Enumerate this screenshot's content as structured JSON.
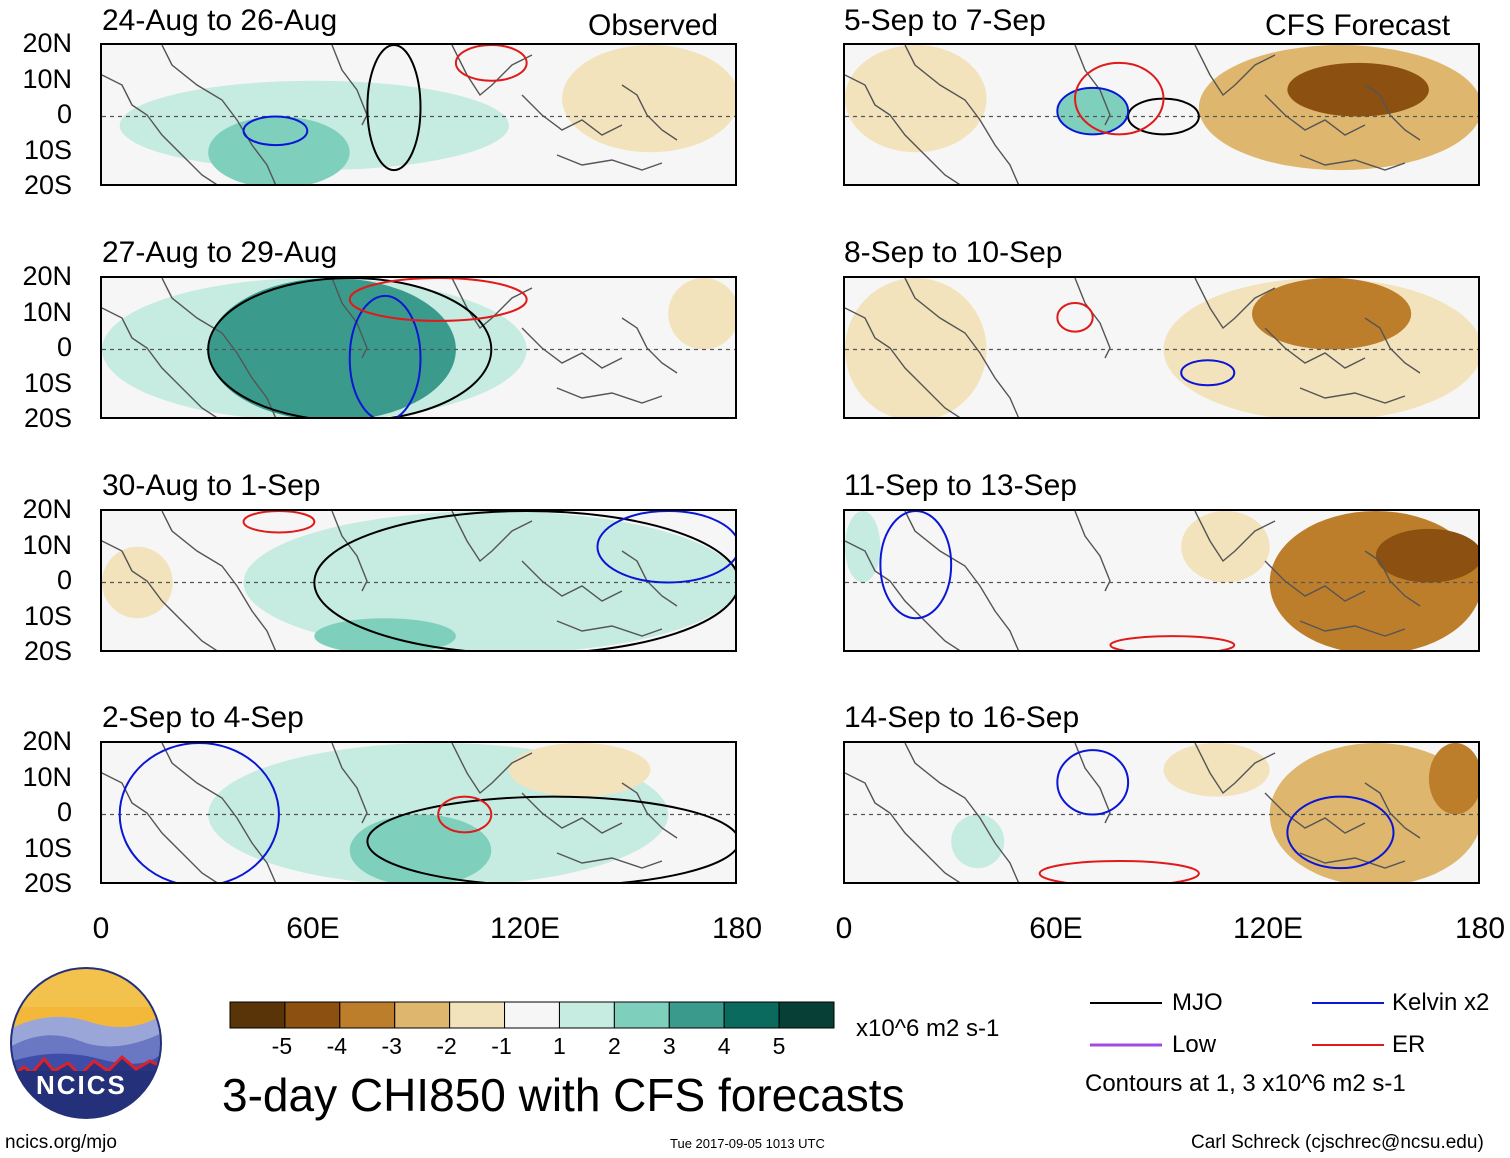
{
  "chart_data": {
    "type": "heatmap",
    "title": "3-day CHI850 with CFS forecasts",
    "units": "x10^6 m2 s-1",
    "column_labels": [
      "Observed",
      "CFS Forecast"
    ],
    "lat_ticks": [
      "20N",
      "10N",
      "0",
      "10S",
      "20S"
    ],
    "lon_ticks": [
      "0",
      "60E",
      "120E",
      "180"
    ],
    "panels": [
      {
        "title": "24-Aug to 26-Aug",
        "column": "Observed",
        "regions": [
          {
            "type": "pos",
            "level": 3,
            "lon": [
              30,
              70
            ],
            "lat": [
              -20,
              0
            ]
          },
          {
            "type": "pos",
            "level": 2,
            "lon": [
              5,
              115
            ],
            "lat": [
              -15,
              10
            ]
          },
          {
            "type": "neg",
            "level": -2,
            "lon": [
              130,
              180
            ],
            "lat": [
              -10,
              20
            ]
          }
        ],
        "contours": [
          {
            "kind": "MJO",
            "lon": [
              75,
              90
            ],
            "lat": [
              -15,
              20
            ]
          },
          {
            "kind": "Kelvin",
            "lon": [
              40,
              58
            ],
            "lat": [
              -8,
              0
            ]
          },
          {
            "kind": "ER",
            "lon": [
              100,
              120
            ],
            "lat": [
              10,
              20
            ]
          }
        ]
      },
      {
        "title": "27-Aug to 29-Aug",
        "column": "Observed",
        "regions": [
          {
            "type": "pos",
            "level": 4,
            "lon": [
              30,
              100
            ],
            "lat": [
              -20,
              20
            ]
          },
          {
            "type": "pos",
            "level": 2,
            "lon": [
              0,
              120
            ],
            "lat": [
              -20,
              20
            ]
          },
          {
            "type": "neg",
            "level": -1,
            "lon": [
              160,
              180
            ],
            "lat": [
              0,
              20
            ]
          }
        ],
        "contours": [
          {
            "kind": "MJO",
            "lon": [
              30,
              110
            ],
            "lat": [
              -20,
              20
            ]
          },
          {
            "kind": "Kelvin",
            "lon": [
              70,
              90
            ],
            "lat": [
              -20,
              15
            ]
          },
          {
            "kind": "ER",
            "lon": [
              70,
              120
            ],
            "lat": [
              8,
              20
            ]
          }
        ]
      },
      {
        "title": "30-Aug to 1-Sep",
        "column": "Observed",
        "regions": [
          {
            "type": "pos",
            "level": 2,
            "lon": [
              40,
              180
            ],
            "lat": [
              -20,
              20
            ]
          },
          {
            "type": "pos",
            "level": 3,
            "lon": [
              60,
              100
            ],
            "lat": [
              -20,
              -10
            ]
          },
          {
            "type": "neg",
            "level": -1,
            "lon": [
              0,
              20
            ],
            "lat": [
              -10,
              10
            ]
          }
        ],
        "contours": [
          {
            "kind": "MJO",
            "lon": [
              60,
              180
            ],
            "lat": [
              -20,
              20
            ]
          },
          {
            "kind": "Kelvin",
            "lon": [
              140,
              180
            ],
            "lat": [
              0,
              20
            ]
          },
          {
            "kind": "ER",
            "lon": [
              40,
              60
            ],
            "lat": [
              14,
              20
            ]
          }
        ]
      },
      {
        "title": "2-Sep to 4-Sep",
        "column": "Observed",
        "regions": [
          {
            "type": "pos",
            "level": 3,
            "lon": [
              70,
              110
            ],
            "lat": [
              -20,
              0
            ]
          },
          {
            "type": "pos",
            "level": 2,
            "lon": [
              30,
              160
            ],
            "lat": [
              -20,
              20
            ]
          },
          {
            "type": "neg",
            "level": -2,
            "lon": [
              115,
              155
            ],
            "lat": [
              5,
              20
            ]
          }
        ],
        "contours": [
          {
            "kind": "MJO",
            "lon": [
              75,
              180
            ],
            "lat": [
              -20,
              5
            ]
          },
          {
            "kind": "Kelvin",
            "lon": [
              5,
              50
            ],
            "lat": [
              -20,
              20
            ]
          },
          {
            "kind": "ER",
            "lon": [
              95,
              110
            ],
            "lat": [
              -5,
              5
            ]
          }
        ]
      },
      {
        "title": "5-Sep to 7-Sep",
        "column": "CFS Forecast",
        "regions": [
          {
            "type": "neg",
            "level": -5,
            "lon": [
              125,
              165
            ],
            "lat": [
              0,
              15
            ]
          },
          {
            "type": "neg",
            "level": -3,
            "lon": [
              100,
              180
            ],
            "lat": [
              -15,
              20
            ]
          },
          {
            "type": "neg",
            "level": -2,
            "lon": [
              0,
              40
            ],
            "lat": [
              -10,
              20
            ]
          },
          {
            "type": "pos",
            "level": 3,
            "lon": [
              60,
              80
            ],
            "lat": [
              -5,
              8
            ]
          }
        ],
        "contours": [
          {
            "kind": "MJO",
            "lon": [
              80,
              100
            ],
            "lat": [
              -5,
              5
            ]
          },
          {
            "kind": "Kelvin",
            "lon": [
              60,
              80
            ],
            "lat": [
              -5,
              8
            ]
          },
          {
            "kind": "ER",
            "lon": [
              65,
              90
            ],
            "lat": [
              -5,
              15
            ]
          }
        ]
      },
      {
        "title": "8-Sep to 10-Sep",
        "column": "CFS Forecast",
        "regions": [
          {
            "type": "neg",
            "level": -4,
            "lon": [
              115,
              160
            ],
            "lat": [
              0,
              20
            ]
          },
          {
            "type": "neg",
            "level": -2,
            "lon": [
              90,
              180
            ],
            "lat": [
              -20,
              20
            ]
          },
          {
            "type": "neg",
            "level": -1,
            "lon": [
              0,
              40
            ],
            "lat": [
              -20,
              20
            ]
          }
        ],
        "contours": [
          {
            "kind": "Kelvin",
            "lon": [
              95,
              110
            ],
            "lat": [
              -10,
              -3
            ]
          },
          {
            "kind": "ER",
            "lon": [
              60,
              70
            ],
            "lat": [
              5,
              13
            ]
          }
        ]
      },
      {
        "title": "11-Sep to 13-Sep",
        "column": "CFS Forecast",
        "regions": [
          {
            "type": "neg",
            "level": -5,
            "lon": [
              150,
              180
            ],
            "lat": [
              0,
              15
            ]
          },
          {
            "type": "neg",
            "level": -4,
            "lon": [
              120,
              180
            ],
            "lat": [
              -20,
              20
            ]
          },
          {
            "type": "neg",
            "level": -2,
            "lon": [
              95,
              120
            ],
            "lat": [
              0,
              20
            ]
          },
          {
            "type": "pos",
            "level": 2,
            "lon": [
              0,
              10
            ],
            "lat": [
              0,
              20
            ]
          }
        ],
        "contours": [
          {
            "kind": "Kelvin",
            "lon": [
              10,
              30
            ],
            "lat": [
              -10,
              20
            ]
          },
          {
            "kind": "ER",
            "lon": [
              75,
              110
            ],
            "lat": [
              -20,
              -15
            ]
          }
        ]
      },
      {
        "title": "14-Sep to 16-Sep",
        "column": "CFS Forecast",
        "regions": [
          {
            "type": "neg",
            "level": -4,
            "lon": [
              165,
              180
            ],
            "lat": [
              0,
              20
            ]
          },
          {
            "type": "neg",
            "level": -3,
            "lon": [
              120,
              180
            ],
            "lat": [
              -20,
              20
            ]
          },
          {
            "type": "neg",
            "level": -2,
            "lon": [
              90,
              120
            ],
            "lat": [
              5,
              20
            ]
          },
          {
            "type": "pos",
            "level": 2,
            "lon": [
              30,
              45
            ],
            "lat": [
              -15,
              0
            ]
          }
        ],
        "contours": [
          {
            "kind": "Kelvin",
            "lon": [
              60,
              80
            ],
            "lat": [
              0,
              18
            ]
          },
          {
            "kind": "Kelvin",
            "lon": [
              125,
              155
            ],
            "lat": [
              -15,
              5
            ]
          },
          {
            "kind": "ER",
            "lon": [
              55,
              100
            ],
            "lat": [
              -20,
              -13
            ]
          }
        ]
      }
    ],
    "colorbar": {
      "labels": [
        "-5",
        "-4",
        "-3",
        "-2",
        "-1",
        "1",
        "2",
        "3",
        "4",
        "5"
      ],
      "colors": [
        "#5a3409",
        "#8c5010",
        "#bd7e2c",
        "#deb66e",
        "#f3e3bd",
        "#f6f6f6",
        "#c6ebe1",
        "#7fcfbd",
        "#3a9b8c",
        "#0b6a5e",
        "#073f36"
      ]
    },
    "legend": [
      {
        "label": "MJO",
        "color": "#000000"
      },
      {
        "label": "Kelvin x2",
        "color": "#0a16d6"
      },
      {
        "label": "Low",
        "color": "#a04be6"
      },
      {
        "label": "ER",
        "color": "#e01a1a"
      }
    ],
    "contour_note": "Contours at 1, 3 x10^6 m2 s-1"
  },
  "footer": {
    "logo_text": "NCICS",
    "site": "ncics.org/mjo",
    "timestamp": "Tue 2017-09-05 1013 UTC",
    "author": "Carl Schreck (cjschrec@ncsu.edu)"
  }
}
